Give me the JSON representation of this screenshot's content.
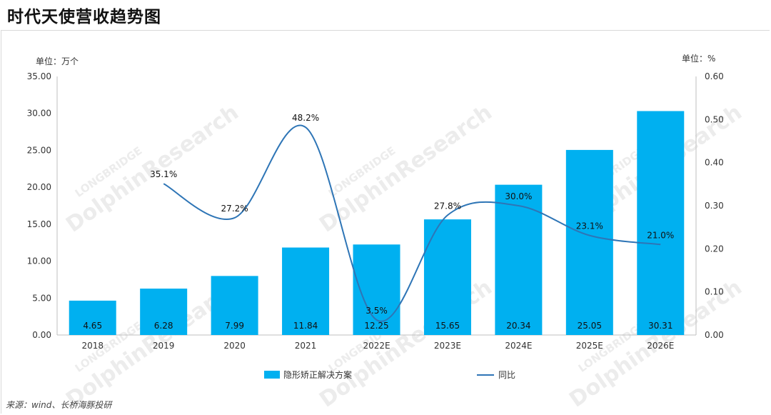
{
  "title": "时代天使营收趋势图",
  "source": "来源：wind、长桥海豚投研",
  "watermark": {
    "brand": "LONGBRIDGE",
    "name": "DolphinResearch",
    "color": "#ececec"
  },
  "chart_data": {
    "type": "bar",
    "categories": [
      "2018",
      "2019",
      "2020",
      "2021",
      "2022E",
      "2023E",
      "2024E",
      "2025E",
      "2026E"
    ],
    "y_left": {
      "unit": "单位：万个",
      "range": [
        0,
        35
      ],
      "ticks": [
        "0.00",
        "5.00",
        "10.00",
        "15.00",
        "20.00",
        "25.00",
        "30.00",
        "35.00"
      ]
    },
    "y_right": {
      "unit": "单位：%",
      "range": [
        0,
        0.6
      ],
      "ticks": [
        "0.00",
        "0.10",
        "0.20",
        "0.30",
        "0.40",
        "0.50",
        "0.60"
      ]
    },
    "series": [
      {
        "name": "隐形矫正解决方案",
        "type": "bar",
        "axis": "left",
        "color": "#00b0f0",
        "values": [
          4.65,
          6.28,
          7.99,
          11.84,
          12.25,
          15.65,
          20.34,
          25.05,
          30.31
        ],
        "labels": [
          "4.65",
          "6.28",
          "7.99",
          "11.84",
          "12.25",
          "15.65",
          "20.34",
          "25.05",
          "30.31"
        ]
      },
      {
        "name": "同比",
        "type": "line",
        "axis": "right",
        "color": "#2e75b6",
        "smooth": true,
        "values": [
          null,
          0.351,
          0.272,
          0.482,
          0.035,
          0.278,
          0.3,
          0.231,
          0.21
        ],
        "labels": [
          null,
          "35.1%",
          "27.2%",
          "48.2%",
          "3.5%",
          "27.8%",
          "30.0%",
          "23.1%",
          "21.0%"
        ]
      }
    ],
    "grid": false,
    "legend": "bottom"
  }
}
